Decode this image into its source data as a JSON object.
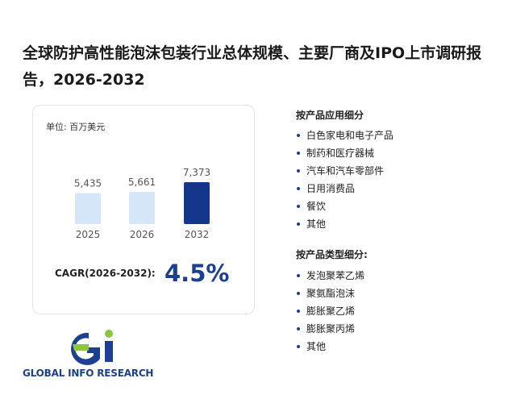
{
  "header": {
    "title": "全球防护高性能泡沫包装行业总体规模、主要厂商及IPO上市调研报告，2026-2032"
  },
  "unit": "单位: 百万美元",
  "chart_data": {
    "type": "bar",
    "categories": [
      "2025",
      "2026",
      "2032"
    ],
    "values": [
      5435,
      5661,
      7373
    ],
    "value_labels": [
      "5,435",
      "5,661",
      "7,373"
    ],
    "colors": [
      "#d5e6f8",
      "#d5e6f8",
      "#14378c"
    ]
  },
  "cagr": {
    "label": "CAGR(2026-2032):",
    "value": "4.5%"
  },
  "application_segments": {
    "title": "按产品应用细分",
    "items": [
      "白色家电和电子产品",
      "制药和医疗器械",
      "汽车和汽车零部件",
      "日用消费品",
      "餐饮",
      "其他"
    ]
  },
  "type_segments": {
    "title": "按产品类型细分:",
    "items": [
      "发泡聚苯乙烯",
      "聚氨酯泡沫",
      "膨胀聚乙烯",
      "膨胀聚丙烯",
      "其他"
    ]
  },
  "logo": "GLOBAL INFO RESEARCH"
}
